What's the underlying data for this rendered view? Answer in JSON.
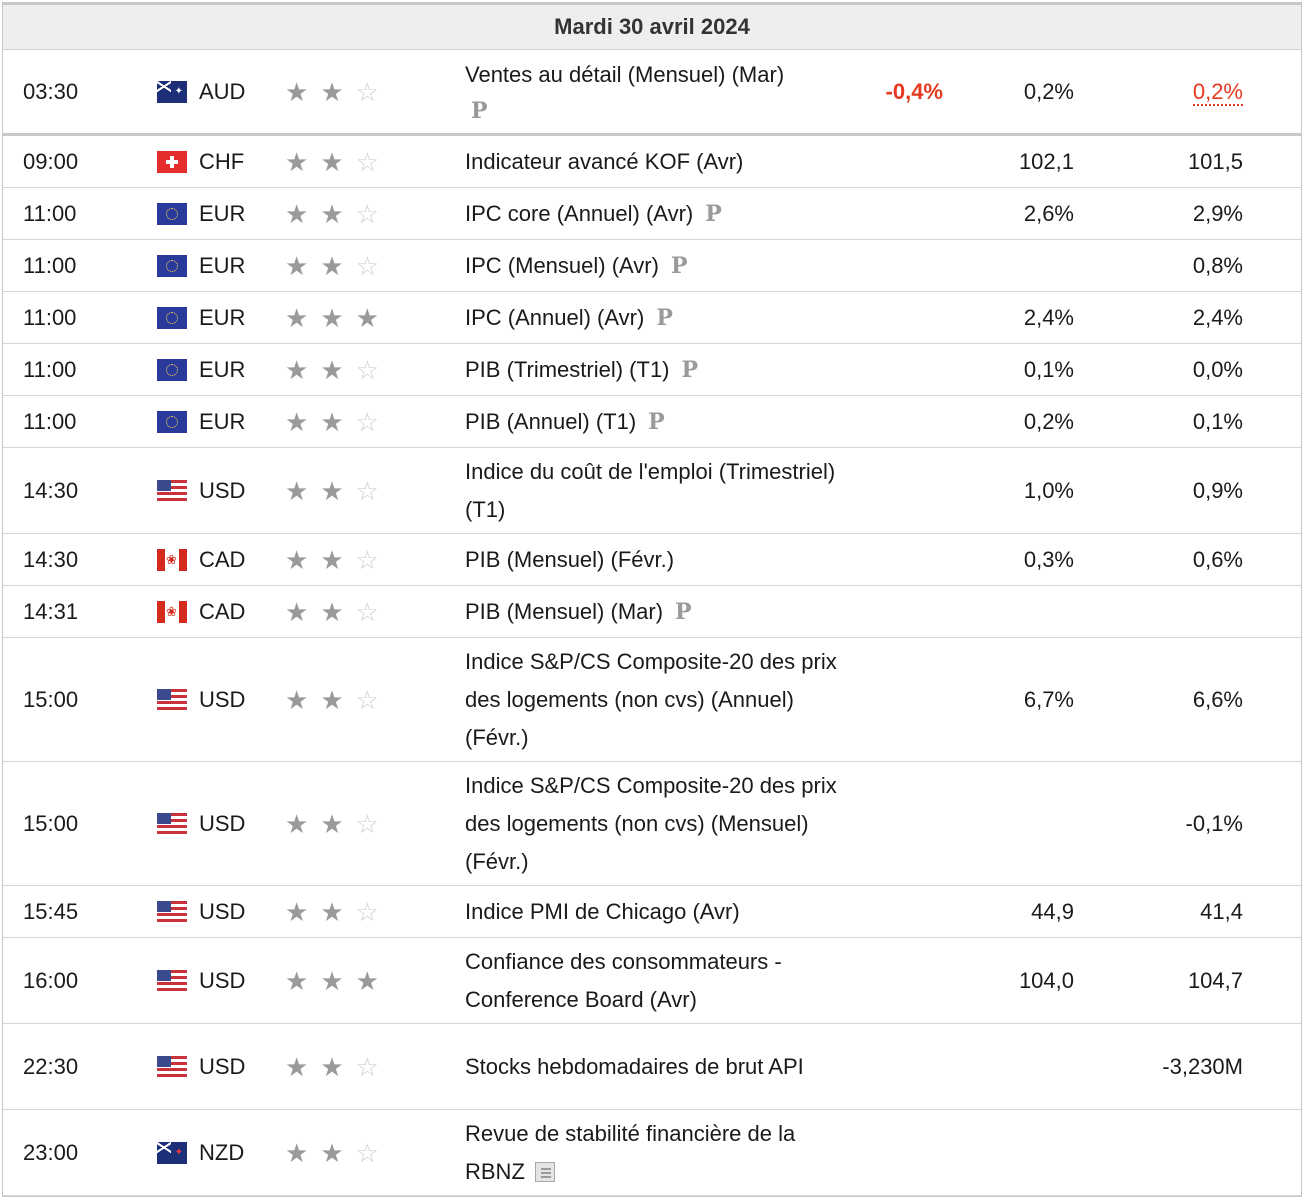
{
  "header": {
    "date": "Mardi 30 avril 2024"
  },
  "rows": [
    {
      "time": "03:30",
      "flag": "au",
      "currency": "AUD",
      "importance": 2,
      "event": "Ventes au détail (Mensuel) (Mar)",
      "marker": "P",
      "actual": "-0,4%",
      "forecast": "0,2%",
      "previous": "0,2%"
    },
    {
      "time": "09:00",
      "flag": "ch",
      "currency": "CHF",
      "importance": 2,
      "event": "Indicateur avancé KOF (Avr)",
      "actual": "",
      "forecast": "102,1",
      "previous": "101,5"
    },
    {
      "time": "11:00",
      "flag": "eu",
      "currency": "EUR",
      "importance": 2,
      "event": "IPC core (Annuel) (Avr)",
      "marker": "P",
      "actual": "",
      "forecast": "2,6%",
      "previous": "2,9%"
    },
    {
      "time": "11:00",
      "flag": "eu",
      "currency": "EUR",
      "importance": 2,
      "event": "IPC (Mensuel) (Avr)",
      "marker": "P",
      "actual": "",
      "forecast": "",
      "previous": "0,8%"
    },
    {
      "time": "11:00",
      "flag": "eu",
      "currency": "EUR",
      "importance": 3,
      "event": "IPC (Annuel) (Avr)",
      "marker": "P",
      "actual": "",
      "forecast": "2,4%",
      "previous": "2,4%"
    },
    {
      "time": "11:00",
      "flag": "eu",
      "currency": "EUR",
      "importance": 2,
      "event": "PIB (Trimestriel) (T1)",
      "marker": "P",
      "actual": "",
      "forecast": "0,1%",
      "previous": "0,0%"
    },
    {
      "time": "11:00",
      "flag": "eu",
      "currency": "EUR",
      "importance": 2,
      "event": "PIB (Annuel) (T1)",
      "marker": "P",
      "actual": "",
      "forecast": "0,2%",
      "previous": "0,1%"
    },
    {
      "time": "14:30",
      "flag": "us",
      "currency": "USD",
      "importance": 2,
      "event": "Indice du coût de l'emploi (Trimestriel) (T1)",
      "actual": "",
      "forecast": "1,0%",
      "previous": "0,9%"
    },
    {
      "time": "14:30",
      "flag": "ca",
      "currency": "CAD",
      "importance": 2,
      "event": "PIB (Mensuel) (Févr.)",
      "actual": "",
      "forecast": "0,3%",
      "previous": "0,6%"
    },
    {
      "time": "14:31",
      "flag": "ca",
      "currency": "CAD",
      "importance": 2,
      "event": "PIB (Mensuel) (Mar)",
      "marker": "P",
      "actual": "",
      "forecast": "",
      "previous": ""
    },
    {
      "time": "15:00",
      "flag": "us",
      "currency": "USD",
      "importance": 2,
      "event": "Indice S&P/CS Composite-20 des prix des logements (non cvs) (Annuel) (Févr.)",
      "actual": "",
      "forecast": "6,7%",
      "previous": "6,6%"
    },
    {
      "time": "15:00",
      "flag": "us",
      "currency": "USD",
      "importance": 2,
      "event": "Indice S&P/CS Composite-20 des prix des logements (non cvs) (Mensuel) (Févr.)",
      "actual": "",
      "forecast": "",
      "previous": "-0,1%"
    },
    {
      "time": "15:45",
      "flag": "us",
      "currency": "USD",
      "importance": 2,
      "event": "Indice PMI de Chicago (Avr)",
      "actual": "",
      "forecast": "44,9",
      "previous": "41,4"
    },
    {
      "time": "16:00",
      "flag": "us",
      "currency": "USD",
      "importance": 3,
      "event": "Confiance des consommateurs - Conference Board (Avr)",
      "actual": "",
      "forecast": "104,0",
      "previous": "104,7"
    },
    {
      "time": "22:30",
      "flag": "us",
      "currency": "USD",
      "importance": 2,
      "event": "Stocks hebdomadaires de brut API",
      "actual": "",
      "forecast": "",
      "previous": "-3,230M"
    },
    {
      "time": "23:00",
      "flag": "nz",
      "currency": "NZD",
      "importance": 2,
      "event": "Revue de stabilité financière de la RBNZ",
      "doc": "document-icon",
      "actual": "",
      "forecast": "",
      "previous": ""
    }
  ]
}
